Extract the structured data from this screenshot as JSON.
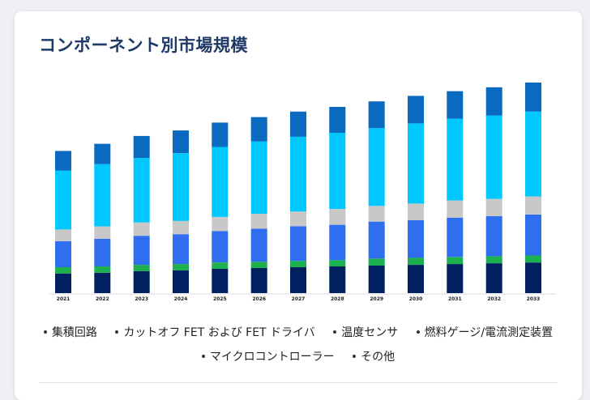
{
  "page": {
    "title": "コンポーネント別市場規模"
  },
  "legend": {
    "items": [
      {
        "label": "集積回路",
        "color": "#002060"
      },
      {
        "label": "カットオフ FET および FET ドライバ",
        "color": "#1db04f"
      },
      {
        "label": "温度センサ",
        "color": "#2f6eef"
      },
      {
        "label": "燃料ゲージ/電流測定装置",
        "color": "#c8c8c8"
      },
      {
        "label": "マイクロコントローラー",
        "color": "#00c8ff"
      },
      {
        "label": "その他",
        "color": "#0a6abf"
      }
    ]
  },
  "chart_data": {
    "type": "bar",
    "stacked": true,
    "title": "コンポーネント別市場規模",
    "xlabel": "",
    "ylabel": "",
    "categories": [
      "2021",
      "2022",
      "2023",
      "2024",
      "2025",
      "2026",
      "2027",
      "2028",
      "2029",
      "2030",
      "2031",
      "2032",
      "2033"
    ],
    "ylim": [
      0,
      270
    ],
    "grid": false,
    "legend_position": "bottom",
    "series": [
      {
        "name": "集積回路",
        "color": "#002060",
        "values": [
          25,
          26,
          28,
          29,
          31,
          32,
          33,
          34,
          35,
          36,
          37,
          38,
          39
        ]
      },
      {
        "name": "カットオフ FET および FET ドライバ",
        "color": "#1db04f",
        "values": [
          8,
          8,
          8,
          8,
          8,
          8,
          8,
          8,
          9,
          9,
          9,
          9,
          9
        ]
      },
      {
        "name": "温度センサ",
        "color": "#2f6eef",
        "values": [
          33,
          35,
          37,
          38,
          40,
          42,
          44,
          45,
          47,
          48,
          50,
          51,
          52
        ]
      },
      {
        "name": "燃料ゲージ/電流測定装置",
        "color": "#c8c8c8",
        "values": [
          15,
          16,
          17,
          17,
          18,
          19,
          19,
          20,
          20,
          21,
          22,
          22,
          23
        ]
      },
      {
        "name": "マイクロコントローラー",
        "color": "#00c8ff",
        "values": [
          75,
          79,
          82,
          86,
          89,
          92,
          95,
          97,
          99,
          102,
          104,
          106,
          108
        ]
      },
      {
        "name": "その他",
        "color": "#0a6abf",
        "values": [
          25,
          26,
          28,
          29,
          31,
          31,
          32,
          33,
          34,
          35,
          35,
          36,
          37
        ]
      }
    ]
  }
}
